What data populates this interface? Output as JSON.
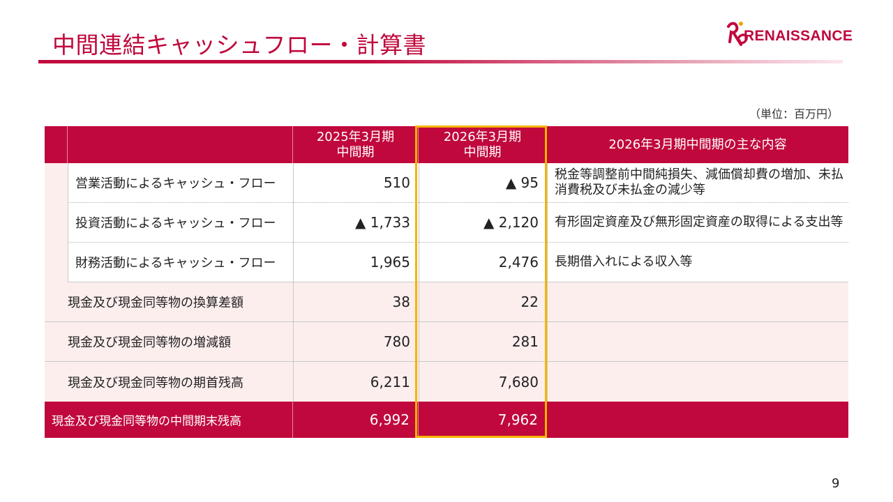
{
  "page": {
    "title": "中間連結キャッシュフロー・計算書",
    "unit": "（単位：百万円）",
    "page_number": "9"
  },
  "logo": {
    "text": "RENAISSANCE"
  },
  "table": {
    "headers": {
      "col1_line1": "2025年3月期",
      "col1_line2": "中間期",
      "col2_line1": "2026年3月期",
      "col2_line2": "中間期",
      "notes": "2026年3月期中間期の主な内容"
    },
    "rows": [
      {
        "label": "営業活動によるキャッシュ・フロー",
        "prev": "510",
        "curr": "▲ 95",
        "note": "税金等調整前中間純損失、減価償却費の増加、未払消費税及び未払金の減少等"
      },
      {
        "label": "投資活動によるキャッシュ・フロー",
        "prev": "▲ 1,733",
        "curr": "▲ 2,120",
        "note": "有形固定資産及び無形固定資産の取得による支出等"
      },
      {
        "label": "財務活動によるキャッシュ・フロー",
        "prev": "1,965",
        "curr": "2,476",
        "note": "長期借入れによる収入等"
      },
      {
        "label": "現金及び現金同等物の換算差額",
        "prev": "38",
        "curr": "22",
        "note": ""
      },
      {
        "label": "現金及び現金同等物の増減額",
        "prev": "780",
        "curr": "281",
        "note": ""
      },
      {
        "label": "現金及び現金同等物の期首残高",
        "prev": "6,211",
        "curr": "7,680",
        "note": ""
      },
      {
        "label": "現金及び現金同等物の中間期末残高",
        "prev": "6,992",
        "curr": "7,962",
        "note": ""
      }
    ]
  },
  "colors": {
    "accent": "#c0083c",
    "highlight": "#f5b400",
    "row_tint": "#fdeeee"
  }
}
